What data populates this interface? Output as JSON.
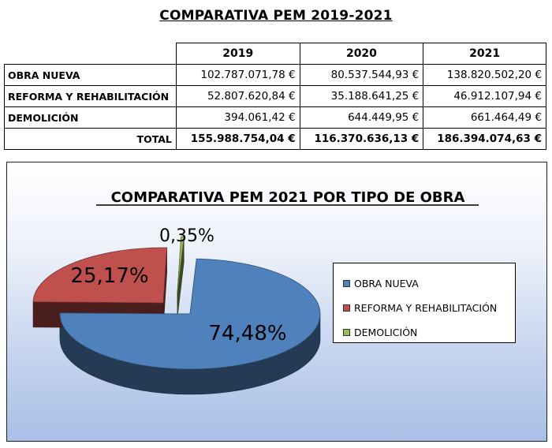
{
  "page_title": "COMPARATIVA PEM 2019-2021",
  "table": {
    "columns": [
      "2019",
      "2020",
      "2021"
    ],
    "rows": [
      {
        "label": "OBRA NUEVA",
        "values": [
          "102.787.071,78 €",
          "80.537.544,93 €",
          "138.820.502,20 €"
        ]
      },
      {
        "label": "REFORMA Y REHABILITACIÓN",
        "values": [
          "52.807.620,84 €",
          "35.188.641,25 €",
          "46.912.107,94 €"
        ]
      },
      {
        "label": "DEMOLICIÓN",
        "values": [
          "394.061,42 €",
          "644.449,95 €",
          "661.464,49 €"
        ]
      }
    ],
    "total": {
      "label": "TOTAL",
      "values": [
        "155.988.754,04 €",
        "116.370.636,13 €",
        "186.394.074,63 €"
      ]
    }
  },
  "chart_data": {
    "type": "pie",
    "style": "3d-exploded",
    "title": "COMPARATIVA PEM 2021 POR TIPO DE OBRA",
    "categories": [
      "OBRA NUEVA",
      "REFORMA Y REHABILITACIÓN",
      "DEMOLICIÓN"
    ],
    "values": [
      74.48,
      25.17,
      0.35
    ],
    "data_labels": [
      "74,48%",
      "25,17%",
      "0,35%"
    ],
    "colors": [
      "#4f81bd",
      "#c0504d",
      "#9bbb59"
    ],
    "legend": "right"
  }
}
